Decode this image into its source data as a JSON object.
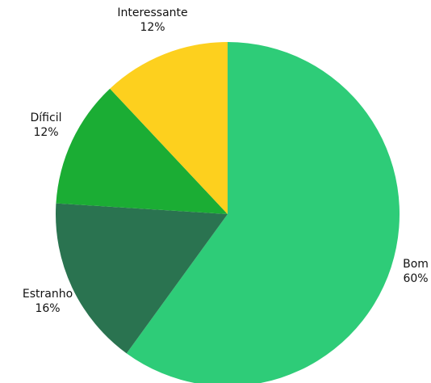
{
  "chart_data": {
    "type": "pie",
    "slices": [
      {
        "label": "Bom",
        "value": 60,
        "value_label": "60%",
        "color": "#2ecc78"
      },
      {
        "label": "Estranho",
        "value": 16,
        "value_label": "16%",
        "color": "#2a7350"
      },
      {
        "label": "Díficil",
        "value": 12,
        "value_label": "12%",
        "color": "#1bad34"
      },
      {
        "label": "Interessante",
        "value": 12,
        "value_label": "12%",
        "color": "#fdd01e"
      }
    ],
    "start_angle_deg": 0,
    "direction": "clockwise",
    "legend": "none",
    "labels": "outside"
  }
}
